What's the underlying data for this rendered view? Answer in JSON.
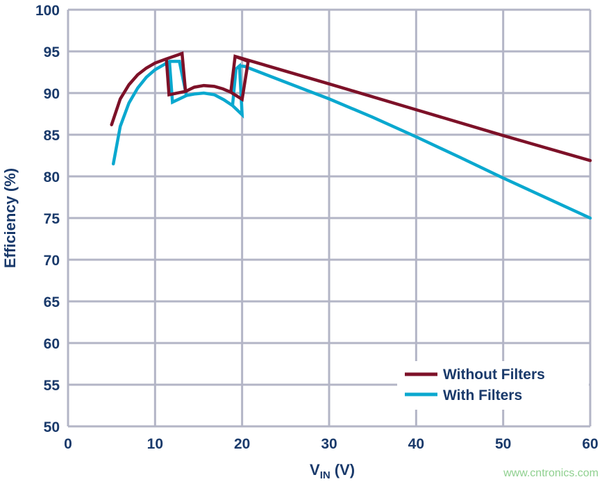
{
  "chart_data": {
    "type": "line",
    "title": "",
    "xlabel_main": "V",
    "xlabel_sub": "IN",
    "xlabel_unit": " (V)",
    "ylabel": "Efficiency (%)",
    "xlim": [
      0,
      60
    ],
    "ylim": [
      50,
      100
    ],
    "xticks": [
      0,
      10,
      20,
      30,
      40,
      50,
      60
    ],
    "yticks": [
      50,
      55,
      60,
      65,
      70,
      75,
      80,
      85,
      90,
      95,
      100
    ],
    "grid": true,
    "legend_placement": "bottom-right",
    "series": [
      {
        "name": "Without Filters",
        "color": "#7d1128",
        "points": [
          [
            5,
            86.2
          ],
          [
            6,
            89.3
          ],
          [
            7,
            91
          ],
          [
            8,
            92.2
          ],
          [
            9,
            93
          ],
          [
            10,
            93.6
          ],
          [
            11.3,
            94.1
          ],
          [
            13.1,
            94.75
          ],
          [
            13.5,
            90.2
          ],
          [
            11.6,
            89.8
          ],
          [
            11.3,
            94.1
          ],
          [
            11.6,
            89.8
          ],
          [
            13.5,
            90.2
          ],
          [
            14.5,
            90.7
          ],
          [
            15.6,
            90.9
          ],
          [
            16.8,
            90.8
          ],
          [
            17.8,
            90.5
          ],
          [
            18.7,
            90.1
          ],
          [
            20,
            89.25
          ],
          [
            20.7,
            93.8
          ],
          [
            19.2,
            94.4
          ],
          [
            18.7,
            90.1
          ],
          [
            19.2,
            94.4
          ],
          [
            30,
            91.1
          ],
          [
            40,
            88.0
          ],
          [
            50,
            84.9
          ],
          [
            60,
            81.9
          ]
        ]
      },
      {
        "name": "With Filters",
        "color": "#0aa8cf",
        "points": [
          [
            5.2,
            81.5
          ],
          [
            6,
            86
          ],
          [
            7,
            88.8
          ],
          [
            8,
            90.6
          ],
          [
            9,
            91.9
          ],
          [
            10,
            92.8
          ],
          [
            11,
            93.4
          ],
          [
            11.65,
            93.8
          ],
          [
            12.8,
            93.8
          ],
          [
            13.6,
            89.7
          ],
          [
            12,
            88.9
          ],
          [
            11.65,
            93.8
          ],
          [
            12,
            88.9
          ],
          [
            13.6,
            89.7
          ],
          [
            14.6,
            89.9
          ],
          [
            15.6,
            90.0
          ],
          [
            16.8,
            89.8
          ],
          [
            17.9,
            89.2
          ],
          [
            18.9,
            88.5
          ],
          [
            20,
            87.4
          ],
          [
            19.7,
            93.25
          ],
          [
            19.3,
            92.9
          ],
          [
            18.9,
            88.5
          ],
          [
            19.3,
            92.9
          ],
          [
            19.7,
            93.25
          ],
          [
            20.3,
            93.2
          ],
          [
            25,
            91.3
          ],
          [
            30,
            89.3
          ],
          [
            35,
            87.1
          ],
          [
            40,
            84.75
          ],
          [
            45,
            82.3
          ],
          [
            50,
            79.8
          ],
          [
            55,
            77.4
          ],
          [
            60,
            75.0
          ]
        ]
      }
    ]
  },
  "colors": {
    "axis_text": "#1a3a6b",
    "grid": "#b3b5c6",
    "watermark": "#8fd08f"
  },
  "watermark": "www.cntronics.com"
}
